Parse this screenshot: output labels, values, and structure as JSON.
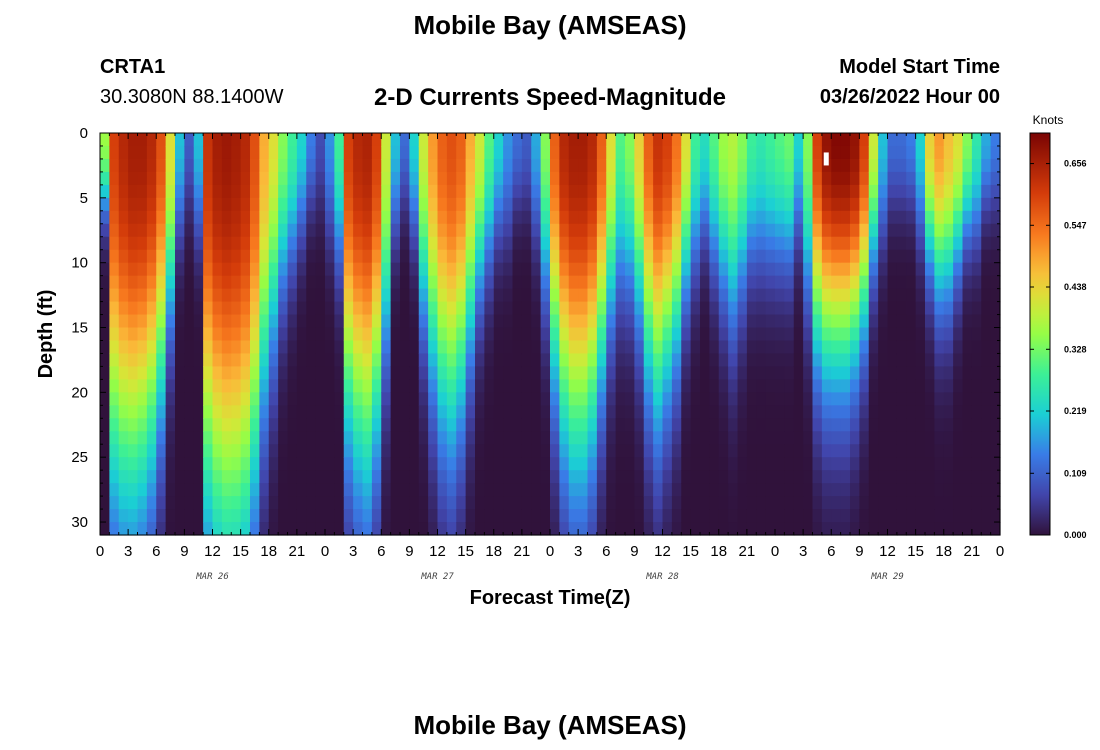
{
  "page": {
    "title": "Mobile Bay (AMSEAS)",
    "station_id": "CRTA1",
    "station_coords": "30.3080N  88.1400W",
    "subtitle": "2-D Currents Speed-Magnitude",
    "model_start_label": "Model Start Time",
    "model_start_value": "03/26/2022 Hour 00",
    "footer_title": "Mobile Bay (AMSEAS)"
  },
  "chart_data": {
    "type": "heatmap",
    "title": "2-D Currents Speed-Magnitude",
    "xlabel": "Forecast Time(Z)",
    "ylabel": "Depth (ft)",
    "xlim": [
      0,
      96
    ],
    "ylim": [
      31,
      0
    ],
    "x_ticks": [
      0,
      3,
      6,
      9,
      12,
      15,
      18,
      21,
      24,
      27,
      30,
      33,
      36,
      39,
      42,
      45,
      48,
      51,
      54,
      57,
      60,
      63,
      66,
      69,
      72,
      75,
      78,
      81,
      84,
      87,
      90,
      93,
      96
    ],
    "x_tick_labels": [
      "0",
      "3",
      "6",
      "9",
      "12",
      "15",
      "18",
      "21",
      "0",
      "3",
      "6",
      "9",
      "12",
      "15",
      "18",
      "21",
      "0",
      "3",
      "6",
      "9",
      "12",
      "15",
      "18",
      "21",
      "0",
      "3",
      "6",
      "9",
      "12",
      "15",
      "18",
      "21",
      "0"
    ],
    "date_labels": [
      {
        "text": "MAR 26",
        "hour": 12
      },
      {
        "text": "MAR 27",
        "hour": 36
      },
      {
        "text": "MAR 28",
        "hour": 60
      },
      {
        "text": "MAR 29",
        "hour": 84
      }
    ],
    "y_ticks": [
      0,
      5,
      10,
      15,
      20,
      25,
      30
    ],
    "y_tick_labels": [
      "0",
      "5",
      "10",
      "15",
      "20",
      "25",
      "30"
    ],
    "colorbar": {
      "unit": "Knots",
      "min": 0.0,
      "max": 0.71,
      "ticks": [
        0.0,
        0.109,
        0.219,
        0.328,
        0.438,
        0.547,
        0.656
      ],
      "tick_labels": [
        "0.000",
        "0.109",
        "0.219",
        "0.328",
        "0.438",
        "0.547",
        "0.656"
      ]
    },
    "grid": {
      "hours": [
        0,
        1,
        2,
        3,
        4,
        5,
        6,
        7,
        8,
        9,
        10,
        11,
        12,
        13,
        14,
        15,
        16,
        17,
        18,
        19,
        20,
        21,
        22,
        23,
        24,
        25,
        26,
        27,
        28,
        29,
        30,
        31,
        32,
        33,
        34,
        35,
        36,
        37,
        38,
        39,
        40,
        41,
        42,
        43,
        44,
        45,
        46,
        47,
        48,
        49,
        50,
        51,
        52,
        53,
        54,
        55,
        56,
        57,
        58,
        59,
        60,
        61,
        62,
        63,
        64,
        65,
        66,
        67,
        68,
        69,
        70,
        71,
        72,
        73,
        74,
        75,
        76,
        77,
        78,
        79,
        80,
        81,
        82,
        83,
        84,
        85,
        86,
        87,
        88,
        89,
        90,
        91,
        92,
        93,
        94,
        95
      ],
      "depths_ft": [
        0.5,
        1.5,
        2.5,
        3.5,
        4.5,
        5.5,
        6.5,
        7.5,
        8.5,
        9.5,
        10.5,
        11.5,
        12.5,
        13.5,
        14.5,
        15.5,
        16.5,
        17.5,
        18.5,
        19.5,
        20.5,
        21.5,
        22.5,
        23.5,
        24.5,
        25.5,
        26.5,
        27.5,
        28.5,
        29.5,
        30.5
      ],
      "surface_speed_kt": [
        0.36,
        0.6,
        0.64,
        0.66,
        0.66,
        0.64,
        0.58,
        0.42,
        0.2,
        0.1,
        0.2,
        0.62,
        0.66,
        0.67,
        0.66,
        0.64,
        0.58,
        0.48,
        0.42,
        0.34,
        0.28,
        0.22,
        0.14,
        0.08,
        0.16,
        0.28,
        0.6,
        0.64,
        0.65,
        0.6,
        0.4,
        0.2,
        0.12,
        0.22,
        0.4,
        0.5,
        0.56,
        0.58,
        0.56,
        0.48,
        0.4,
        0.3,
        0.22,
        0.16,
        0.12,
        0.1,
        0.18,
        0.34,
        0.56,
        0.64,
        0.66,
        0.66,
        0.64,
        0.56,
        0.42,
        0.3,
        0.34,
        0.44,
        0.56,
        0.62,
        0.6,
        0.54,
        0.42,
        0.28,
        0.24,
        0.3,
        0.36,
        0.38,
        0.34,
        0.28,
        0.26,
        0.28,
        0.3,
        0.32,
        0.22,
        0.34,
        0.6,
        0.68,
        0.7,
        0.7,
        0.68,
        0.6,
        0.4,
        0.2,
        0.12,
        0.12,
        0.14,
        0.22,
        0.44,
        0.5,
        0.46,
        0.42,
        0.34,
        0.26,
        0.18,
        0.14
      ],
      "depth_decay_ft": [
        6,
        26,
        27,
        27,
        26,
        24,
        20,
        14,
        8,
        6,
        8,
        28,
        30,
        31,
        31,
        30,
        26,
        20,
        16,
        12,
        10,
        8,
        6,
        6,
        8,
        10,
        22,
        24,
        25,
        22,
        16,
        8,
        6,
        8,
        14,
        18,
        21,
        22,
        20,
        16,
        12,
        10,
        8,
        8,
        6,
        6,
        8,
        12,
        18,
        22,
        24,
        24,
        22,
        18,
        14,
        12,
        12,
        14,
        18,
        20,
        18,
        16,
        12,
        10,
        8,
        10,
        12,
        14,
        12,
        10,
        10,
        10,
        10,
        10,
        8,
        12,
        16,
        17,
        17,
        17,
        16,
        14,
        10,
        8,
        6,
        6,
        6,
        8,
        10,
        12,
        12,
        10,
        8,
        8,
        6,
        6
      ]
    }
  }
}
